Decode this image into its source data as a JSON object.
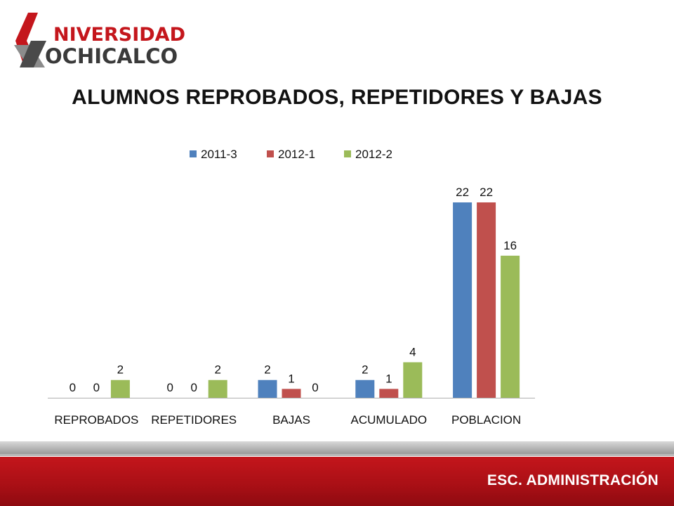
{
  "logo": {
    "line1": "NIVERSIDAD",
    "line2": "OCHICALCO"
  },
  "title": "ALUMNOS REPROBADOS, REPETIDORES Y BAJAS",
  "footer": {
    "label": "ESC. ADMINISTRACIÓN"
  },
  "colors": {
    "brand_red": "#c4161c",
    "s1": "#4f81bd",
    "s2": "#c0504d",
    "s3": "#9bbb59"
  },
  "chart_data": {
    "type": "bar",
    "title": "ALUMNOS REPROBADOS, REPETIDORES Y BAJAS",
    "categories": [
      "REPROBADOS",
      "REPETIDORES",
      "BAJAS",
      "ACUMULADO",
      "POBLACION"
    ],
    "series": [
      {
        "name": "2011-3",
        "color": "#4f81bd",
        "values": [
          0,
          0,
          2,
          2,
          22
        ]
      },
      {
        "name": "2012-1",
        "color": "#c0504d",
        "values": [
          0,
          0,
          1,
          1,
          22
        ]
      },
      {
        "name": "2012-2",
        "color": "#9bbb59",
        "values": [
          2,
          2,
          0,
          4,
          16
        ]
      }
    ],
    "legend": "top",
    "grid": false,
    "data_labels": true
  }
}
